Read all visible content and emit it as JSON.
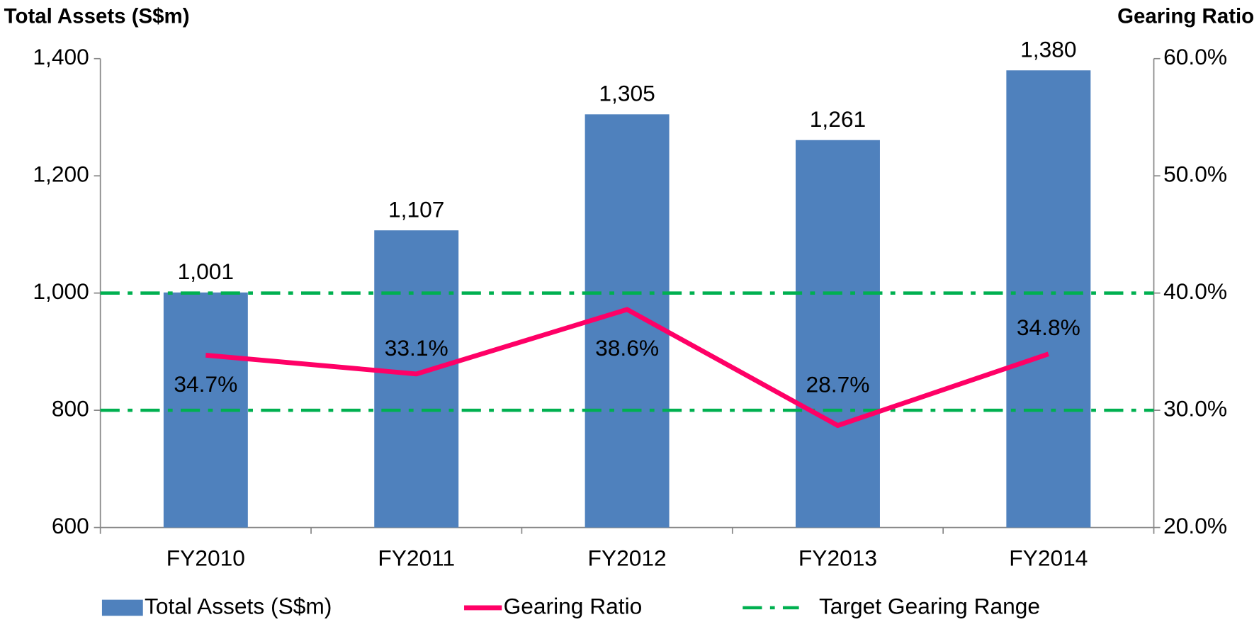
{
  "chart_data": {
    "type": "bar",
    "y_title": "Total Assets (S$m)",
    "y2_title": "Gearing Ratio",
    "categories": [
      "FY2010",
      "FY2011",
      "FY2012",
      "FY2013",
      "FY2014"
    ],
    "series": [
      {
        "name": "Total Assets (S$m)",
        "color": "#4f81bd",
        "type": "bar",
        "values": [
          1001,
          1107,
          1305,
          1261,
          1380
        ],
        "value_labels": [
          "1,001",
          "1,107",
          "1,305",
          "1,261",
          "1,380"
        ]
      },
      {
        "name": "Gearing Ratio",
        "color": "#ff0066",
        "type": "line",
        "axis": "y2",
        "values": [
          34.7,
          33.1,
          38.6,
          28.7,
          34.8
        ],
        "value_labels": [
          "34.7%",
          "33.1%",
          "38.6%",
          "28.7%",
          "34.8%"
        ]
      }
    ],
    "target_range": {
      "name": "Target Gearing Range",
      "color": "#00b050",
      "axis": "y2",
      "values": [
        30,
        40
      ]
    },
    "ylim": [
      600,
      1400
    ],
    "yticks": [
      600,
      800,
      {
        "value": 1000,
        "label": "1,000"
      },
      {
        "value": 1200,
        "label": "1,200"
      },
      {
        "value": 1400,
        "label": "1,400"
      }
    ],
    "y2lim": [
      20,
      60
    ],
    "y2ticks": [
      {
        "value": 20,
        "label": "20.0%"
      },
      {
        "value": 30,
        "label": "30.0%"
      },
      {
        "value": 40,
        "label": "40.0%"
      },
      {
        "value": 50,
        "label": "50.0%"
      },
      {
        "value": 60,
        "label": "60.0%"
      }
    ],
    "grid": false,
    "legend": "bottom"
  }
}
